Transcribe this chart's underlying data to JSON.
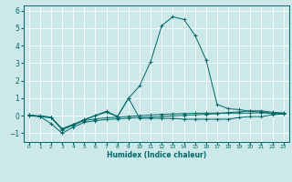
{
  "title": "",
  "xlabel": "Humidex (Indice chaleur)",
  "ylabel": "",
  "bg_color": "#cce8e8",
  "line_color": "#006868",
  "grid_color": "#ffffff",
  "xlim": [
    -0.5,
    23.5
  ],
  "ylim": [
    -1.5,
    6.3
  ],
  "yticks": [
    -1,
    0,
    1,
    2,
    3,
    4,
    5,
    6
  ],
  "xticks": [
    0,
    1,
    2,
    3,
    4,
    5,
    6,
    7,
    8,
    9,
    10,
    11,
    12,
    13,
    14,
    15,
    16,
    17,
    18,
    19,
    20,
    21,
    22,
    23
  ],
  "series": [
    {
      "x": [
        0,
        1,
        2,
        3,
        4,
        5,
        6,
        7,
        8,
        9,
        10,
        11,
        12,
        13,
        14,
        15,
        16,
        17,
        18,
        19,
        20,
        21,
        22,
        23
      ],
      "y": [
        0.05,
        -0.05,
        -0.1,
        -0.8,
        -0.55,
        -0.25,
        0.0,
        0.2,
        -0.05,
        1.0,
        -0.15,
        -0.15,
        -0.15,
        -0.15,
        -0.2,
        -0.2,
        -0.2,
        -0.2,
        -0.2,
        -0.1,
        -0.05,
        -0.05,
        0.05,
        0.1
      ]
    },
    {
      "x": [
        0,
        1,
        2,
        3,
        4,
        5,
        6,
        7,
        8,
        9,
        10,
        11,
        12,
        13,
        14,
        15,
        16,
        17,
        18,
        19,
        20,
        21,
        22,
        23
      ],
      "y": [
        0.0,
        -0.05,
        -0.45,
        -1.0,
        -0.65,
        -0.38,
        -0.28,
        -0.22,
        -0.18,
        -0.14,
        -0.1,
        -0.07,
        -0.04,
        -0.01,
        0.02,
        0.05,
        0.08,
        0.12,
        0.18,
        0.22,
        0.28,
        0.28,
        0.2,
        0.15
      ]
    },
    {
      "x": [
        0,
        1,
        2,
        3,
        4,
        5,
        6,
        7,
        8,
        9,
        10,
        11,
        12,
        13,
        14,
        15,
        16,
        17,
        18,
        19,
        20,
        21,
        22,
        23
      ],
      "y": [
        0.0,
        0.0,
        -0.08,
        -0.75,
        -0.5,
        -0.28,
        -0.18,
        -0.12,
        -0.08,
        -0.04,
        0.0,
        0.04,
        0.08,
        0.1,
        0.12,
        0.14,
        0.15,
        0.15,
        0.15,
        0.15,
        0.15,
        0.18,
        0.12,
        0.12
      ]
    },
    {
      "x": [
        0,
        1,
        2,
        3,
        4,
        5,
        6,
        7,
        8,
        9,
        10,
        11,
        12,
        13,
        14,
        15,
        16,
        17,
        18,
        19,
        20,
        21,
        22,
        23
      ],
      "y": [
        0.05,
        -0.05,
        -0.12,
        -0.75,
        -0.5,
        -0.22,
        0.02,
        0.25,
        -0.03,
        1.0,
        1.7,
        3.1,
        5.15,
        5.65,
        5.5,
        4.6,
        3.2,
        0.65,
        0.4,
        0.35,
        0.25,
        0.2,
        0.15,
        0.15
      ]
    }
  ]
}
